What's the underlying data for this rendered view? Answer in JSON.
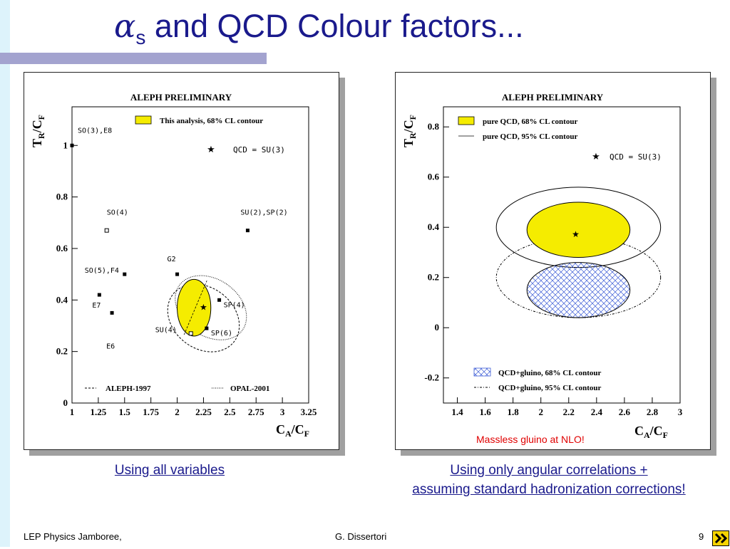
{
  "title": {
    "alpha": "α",
    "sub": "s",
    "rest": " and QCD Colour factors..."
  },
  "colors": {
    "title": "#1a1a8c",
    "contour_fill": "#f5ec00",
    "gluino_hatch": "#3b5bd6",
    "note": "#e00000"
  },
  "left_plot": {
    "header": "ALEPH PRELIMINARY",
    "legend_contour": "This analysis, 68% CL contour",
    "legend_qcd": "QCD = SU(3)",
    "legend_aleph": "ALEPH-1997",
    "legend_opal": "OPAL-2001",
    "group_labels": [
      {
        "text": "SO(3),E8"
      },
      {
        "text": "SO(4)"
      },
      {
        "text": "SU(2),SP(2)"
      },
      {
        "text": "G2"
      },
      {
        "text": "SO(5),F4"
      },
      {
        "text": "E7"
      },
      {
        "text": "E6"
      },
      {
        "text": "SP(4)"
      },
      {
        "text": "SU(4)"
      },
      {
        "text": "SP(6)"
      }
    ]
  },
  "right_plot": {
    "header": "ALEPH PRELIMINARY",
    "legend_68": "pure QCD, 68% CL contour",
    "legend_95": "pure QCD, 95% CL contour",
    "legend_qcd": "QCD = SU(3)",
    "legend_gluino68": "QCD+gluino, 68% CL contour",
    "legend_gluino95": "QCD+gluino, 95% CL contour",
    "note": "Massless gluino at NLO!"
  },
  "chart_data": [
    {
      "type": "scatter",
      "title": "ALEPH PRELIMINARY",
      "xlabel": "CA/CF",
      "ylabel": "TR/CF",
      "xlim": [
        1,
        3.25
      ],
      "ylim": [
        0,
        1.15
      ],
      "x_ticks": [
        "1",
        "1.25",
        "1.5",
        "1.75",
        "2",
        "2.25",
        "2.5",
        "2.75",
        "3",
        "3.25"
      ],
      "y_ticks": [
        "0",
        "0.2",
        "0.4",
        "0.6",
        "0.8",
        "1"
      ],
      "points": [
        {
          "name": "SO(3),E8",
          "x": 1.0,
          "y": 1.0
        },
        {
          "name": "SO(4)",
          "x": 1.33,
          "y": 0.67
        },
        {
          "name": "SU(2),SP(2)",
          "x": 2.67,
          "y": 0.67
        },
        {
          "name": "G2",
          "x": 2.0,
          "y": 0.5
        },
        {
          "name": "SO(5),F4",
          "x": 1.5,
          "y": 0.5
        },
        {
          "name": "E7",
          "x": 1.26,
          "y": 0.42
        },
        {
          "name": "E6",
          "x": 1.38,
          "y": 0.35
        },
        {
          "name": "SP(4)",
          "x": 2.4,
          "y": 0.4
        },
        {
          "name": "SU(4)",
          "x": 2.13,
          "y": 0.27
        },
        {
          "name": "SP(6)",
          "x": 2.28,
          "y": 0.29
        },
        {
          "name": "QCD = SU(3)",
          "x": 2.25,
          "y": 0.375
        }
      ],
      "contours": [
        {
          "name": "This analysis, 68% CL contour",
          "cx": 2.16,
          "cy": 0.37,
          "rx": 0.16,
          "ry": 0.11
        },
        {
          "name": "ALEPH-1997",
          "cx": 2.25,
          "cy": 0.33,
          "rx": 0.29,
          "ry": 0.15
        },
        {
          "name": "OPAL-2001",
          "cx": 2.32,
          "cy": 0.37,
          "rx": 0.27,
          "ry": 0.15
        }
      ]
    },
    {
      "type": "scatter",
      "title": "ALEPH PRELIMINARY",
      "xlabel": "CA/CF",
      "ylabel": "TR/CF",
      "xlim": [
        1.3,
        3.0
      ],
      "ylim": [
        -0.3,
        0.88
      ],
      "x_ticks": [
        "1.4",
        "1.6",
        "1.8",
        "2",
        "2.2",
        "2.4",
        "2.6",
        "2.8",
        "3"
      ],
      "y_ticks": [
        "-0.2",
        "0",
        "0.2",
        "0.4",
        "0.6",
        "0.8"
      ],
      "points": [
        {
          "name": "QCD = SU(3)",
          "x": 2.25,
          "y": 0.375
        }
      ],
      "contours": [
        {
          "name": "pure QCD, 68% CL contour",
          "cx": 2.27,
          "cy": 0.39,
          "rx": 0.37,
          "ry": 0.11
        },
        {
          "name": "pure QCD, 95% CL contour",
          "cx": 2.27,
          "cy": 0.4,
          "rx": 0.59,
          "ry": 0.16
        },
        {
          "name": "QCD+gluino, 68% CL contour",
          "cx": 2.27,
          "cy": 0.15,
          "rx": 0.37,
          "ry": 0.11
        },
        {
          "name": "QCD+gluino, 95% CL contour",
          "cx": 2.27,
          "cy": 0.2,
          "rx": 0.59,
          "ry": 0.16
        }
      ]
    }
  ],
  "captions": {
    "left": "Using all variables",
    "right_line1": "Using only angular correlations +",
    "right_line2": "assuming standard hadronization corrections!"
  },
  "footer": {
    "left": "LEP Physics Jamboree,",
    "center": "G. Dissertori",
    "page": "9"
  }
}
